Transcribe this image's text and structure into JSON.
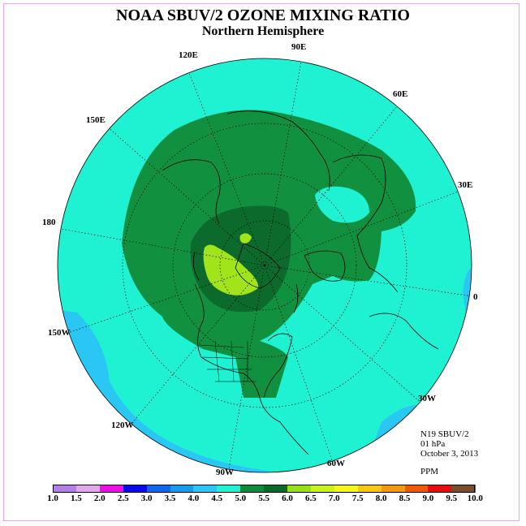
{
  "title": "NOAA SBUV/2 OZONE MIXING RATIO",
  "subtitle": "Northern Hemisphere",
  "info": {
    "instrument": "N19 SBUV/2",
    "level": "01 hPa",
    "date": "October 3, 2013",
    "units": "PPM"
  },
  "longitude_labels": {
    "e90": "90E",
    "e120": "120E",
    "e60": "60E",
    "e150": "150E",
    "e30": "30E",
    "d180": "180",
    "d0": "0",
    "w150": "150W",
    "w30": "30W",
    "w120": "120W",
    "w60": "60W",
    "w90": "90W"
  },
  "colorbar": {
    "labels": [
      "1.0",
      "1.5",
      "2.0",
      "2.5",
      "3.0",
      "3.5",
      "4.0",
      "4.5",
      "5.0",
      "5.5",
      "6.0",
      "6.5",
      "7.0",
      "7.5",
      "8.0",
      "8.5",
      "9.0",
      "9.5",
      "10.0"
    ],
    "colors": [
      "#b47fe6",
      "#e4a8ee",
      "#ee0ee6",
      "#0a0ae8",
      "#1066ee",
      "#1a9cee",
      "#2cc6f6",
      "#20f2d4",
      "#0f8c3a",
      "#0a6a2a",
      "#96e016",
      "#caf21c",
      "#f6f61c",
      "#f6c814",
      "#f29a0e",
      "#ee5a0a",
      "#e60e0e",
      "#7a4e2a"
    ]
  },
  "map_colors": {
    "background_region": "#1ef2d2",
    "outer_blue": "#2ac6f4",
    "band_5_0": "#119140",
    "band_5_5": "#0b6a2c",
    "band_6_0": "#a2e41a",
    "land_outline": "#000000"
  }
}
